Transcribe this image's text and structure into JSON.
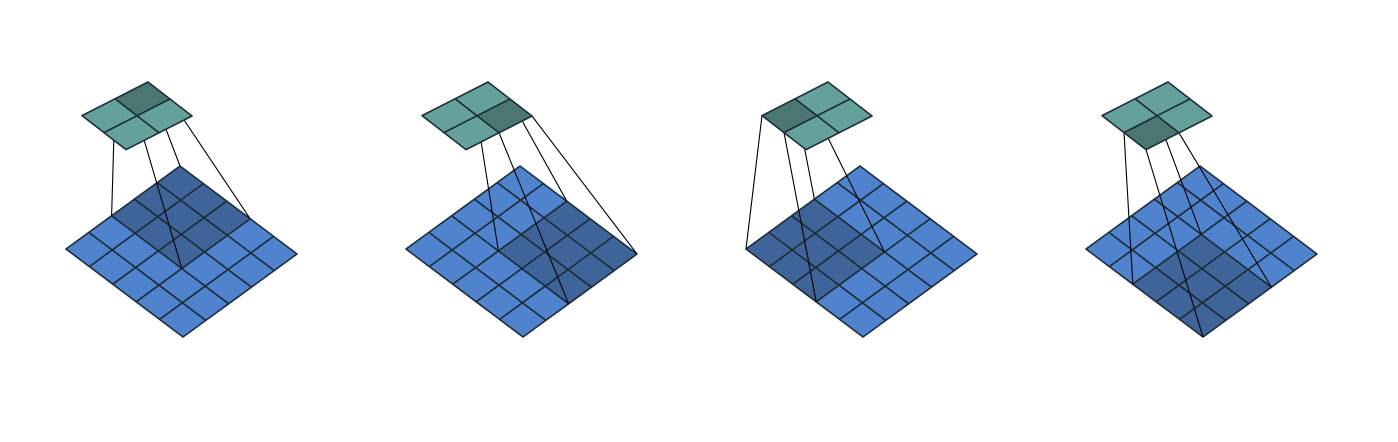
{
  "colors": {
    "background": "#ffffff",
    "input_cell": "#5083cd",
    "input_cell_highlight": "#3f6499",
    "output_cell": "#65a19b",
    "output_cell_highlight": "#4b7672",
    "grid_stroke": "#1c2e3c",
    "projection_line": "#000000"
  },
  "diagram": {
    "input_grid_size": 5,
    "output_grid_size": 2,
    "kernel_size": 3,
    "stride": 2,
    "panels": [
      {
        "output_cell": [
          0,
          0
        ],
        "input_window_origin": [
          0,
          0
        ]
      },
      {
        "output_cell": [
          0,
          1
        ],
        "input_window_origin": [
          0,
          2
        ]
      },
      {
        "output_cell": [
          1,
          0
        ],
        "input_window_origin": [
          2,
          0
        ]
      },
      {
        "output_cell": [
          1,
          1
        ],
        "input_window_origin": [
          2,
          2
        ]
      }
    ]
  }
}
